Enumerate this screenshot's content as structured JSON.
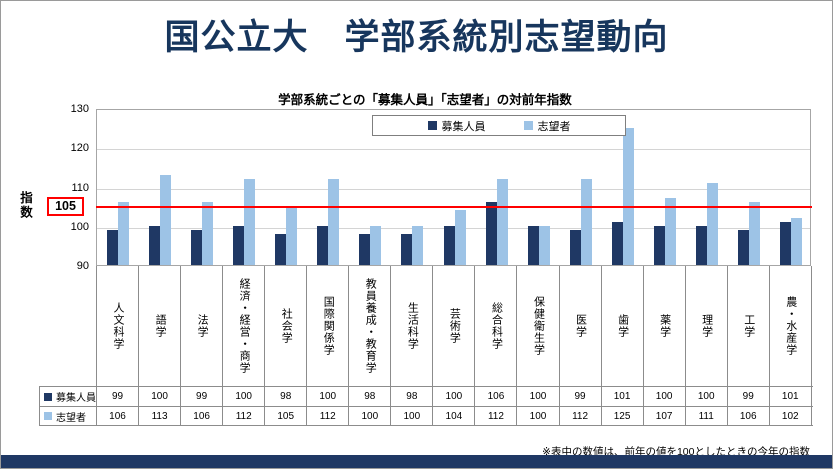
{
  "title": "国公立大　学部系統別志望動向",
  "footnote": "※表中の数値は、前年の値を100としたときの今年の指数",
  "colors": {
    "accent_navy": "#1F3864",
    "series_dark_blue": "#1F3864",
    "series_light_blue": "#9DC3E6",
    "reference_red": "#FF0000"
  },
  "chart_data": {
    "type": "bar",
    "title": "学部系統ごとの「募集人員」「志望者」の対前年指数",
    "xlabel": "",
    "ylabel": "指数",
    "ylim": [
      90,
      130
    ],
    "yticks": [
      130,
      120,
      110,
      100,
      90
    ],
    "reference_line": 105,
    "grid": true,
    "legend_position": "top-center",
    "categories": [
      "人文科学",
      "語学",
      "法学",
      "経済・経営・商学",
      "社会学",
      "国際関係学",
      "教員養成・教育学",
      "生活科学",
      "芸術学",
      "総合科学",
      "保健衛生学",
      "医学",
      "歯学",
      "薬学",
      "理学",
      "工学",
      "農・水産学"
    ],
    "series": [
      {
        "name": "募集人員",
        "color": "#1F3864",
        "values": [
          99,
          100,
          99,
          100,
          98,
          100,
          98,
          98,
          100,
          106,
          100,
          99,
          101,
          100,
          100,
          99,
          101
        ]
      },
      {
        "name": "志望者",
        "color": "#9DC3E6",
        "values": [
          106,
          113,
          106,
          112,
          105,
          112,
          100,
          100,
          104,
          112,
          100,
          112,
          125,
          107,
          111,
          106,
          102
        ]
      }
    ]
  }
}
